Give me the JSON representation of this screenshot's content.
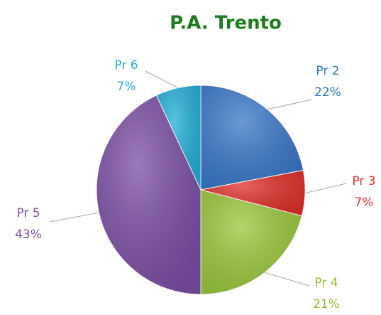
{
  "chart_data": {
    "type": "pie",
    "title": "P.A. Trento",
    "categories": [
      "Pr 2",
      "Pr 3",
      "Pr 4",
      "Pr 5",
      "Pr 6"
    ],
    "values": [
      22,
      7,
      21,
      43,
      7
    ],
    "value_labels": [
      "22%",
      "7%",
      "21%",
      "43%",
      "7%"
    ],
    "colors": [
      "#3a78c9",
      "#e0302a",
      "#9bc83c",
      "#7b4fa5",
      "#22b0d8"
    ],
    "label_colors": [
      "#2e75b6",
      "#e0302a",
      "#8cbd36",
      "#7b4fa5",
      "#29a8d6"
    ]
  }
}
